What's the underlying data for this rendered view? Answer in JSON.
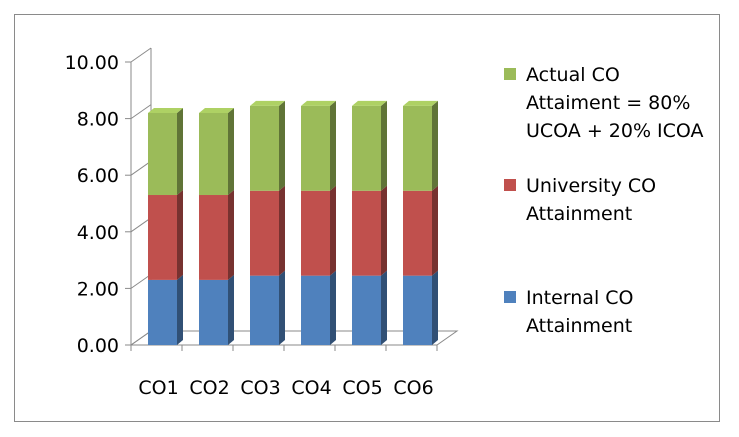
{
  "chart_data": {
    "type": "bar",
    "stacked": true,
    "three_d": true,
    "categories": [
      "CO1",
      "CO2",
      "CO3",
      "CO4",
      "CO5",
      "CO6"
    ],
    "series": [
      {
        "name": "Internal CO Attainment",
        "values": [
          2.3,
          2.3,
          2.45,
          2.45,
          2.45,
          2.45
        ],
        "color": "#4f81bd"
      },
      {
        "name": "University CO Attainment",
        "values": [
          3.0,
          3.0,
          3.0,
          3.0,
          3.0,
          3.0
        ],
        "color": "#c0504d"
      },
      {
        "name": "Actual CO Attaiment =  80% UCOA + 20% ICOA",
        "values": [
          2.9,
          2.9,
          3.0,
          3.0,
          3.0,
          3.0
        ],
        "color": "#9bbb59"
      }
    ],
    "yticks": [
      "0.00",
      "2.00",
      "4.00",
      "6.00",
      "8.00",
      "10.00"
    ],
    "ylim": [
      0,
      10
    ],
    "grid": false,
    "legend_position": "right"
  },
  "legend": [
    {
      "lines": [
        "Actual CO",
        "Attaiment =  80%",
        "UCOA + 20% ICOA"
      ],
      "color": "#9bbb59"
    },
    {
      "lines": [
        "University CO",
        "Attainment"
      ],
      "color": "#c0504d"
    },
    {
      "lines": [
        "Internal CO",
        "Attainment"
      ],
      "color": "#4f81bd"
    }
  ]
}
